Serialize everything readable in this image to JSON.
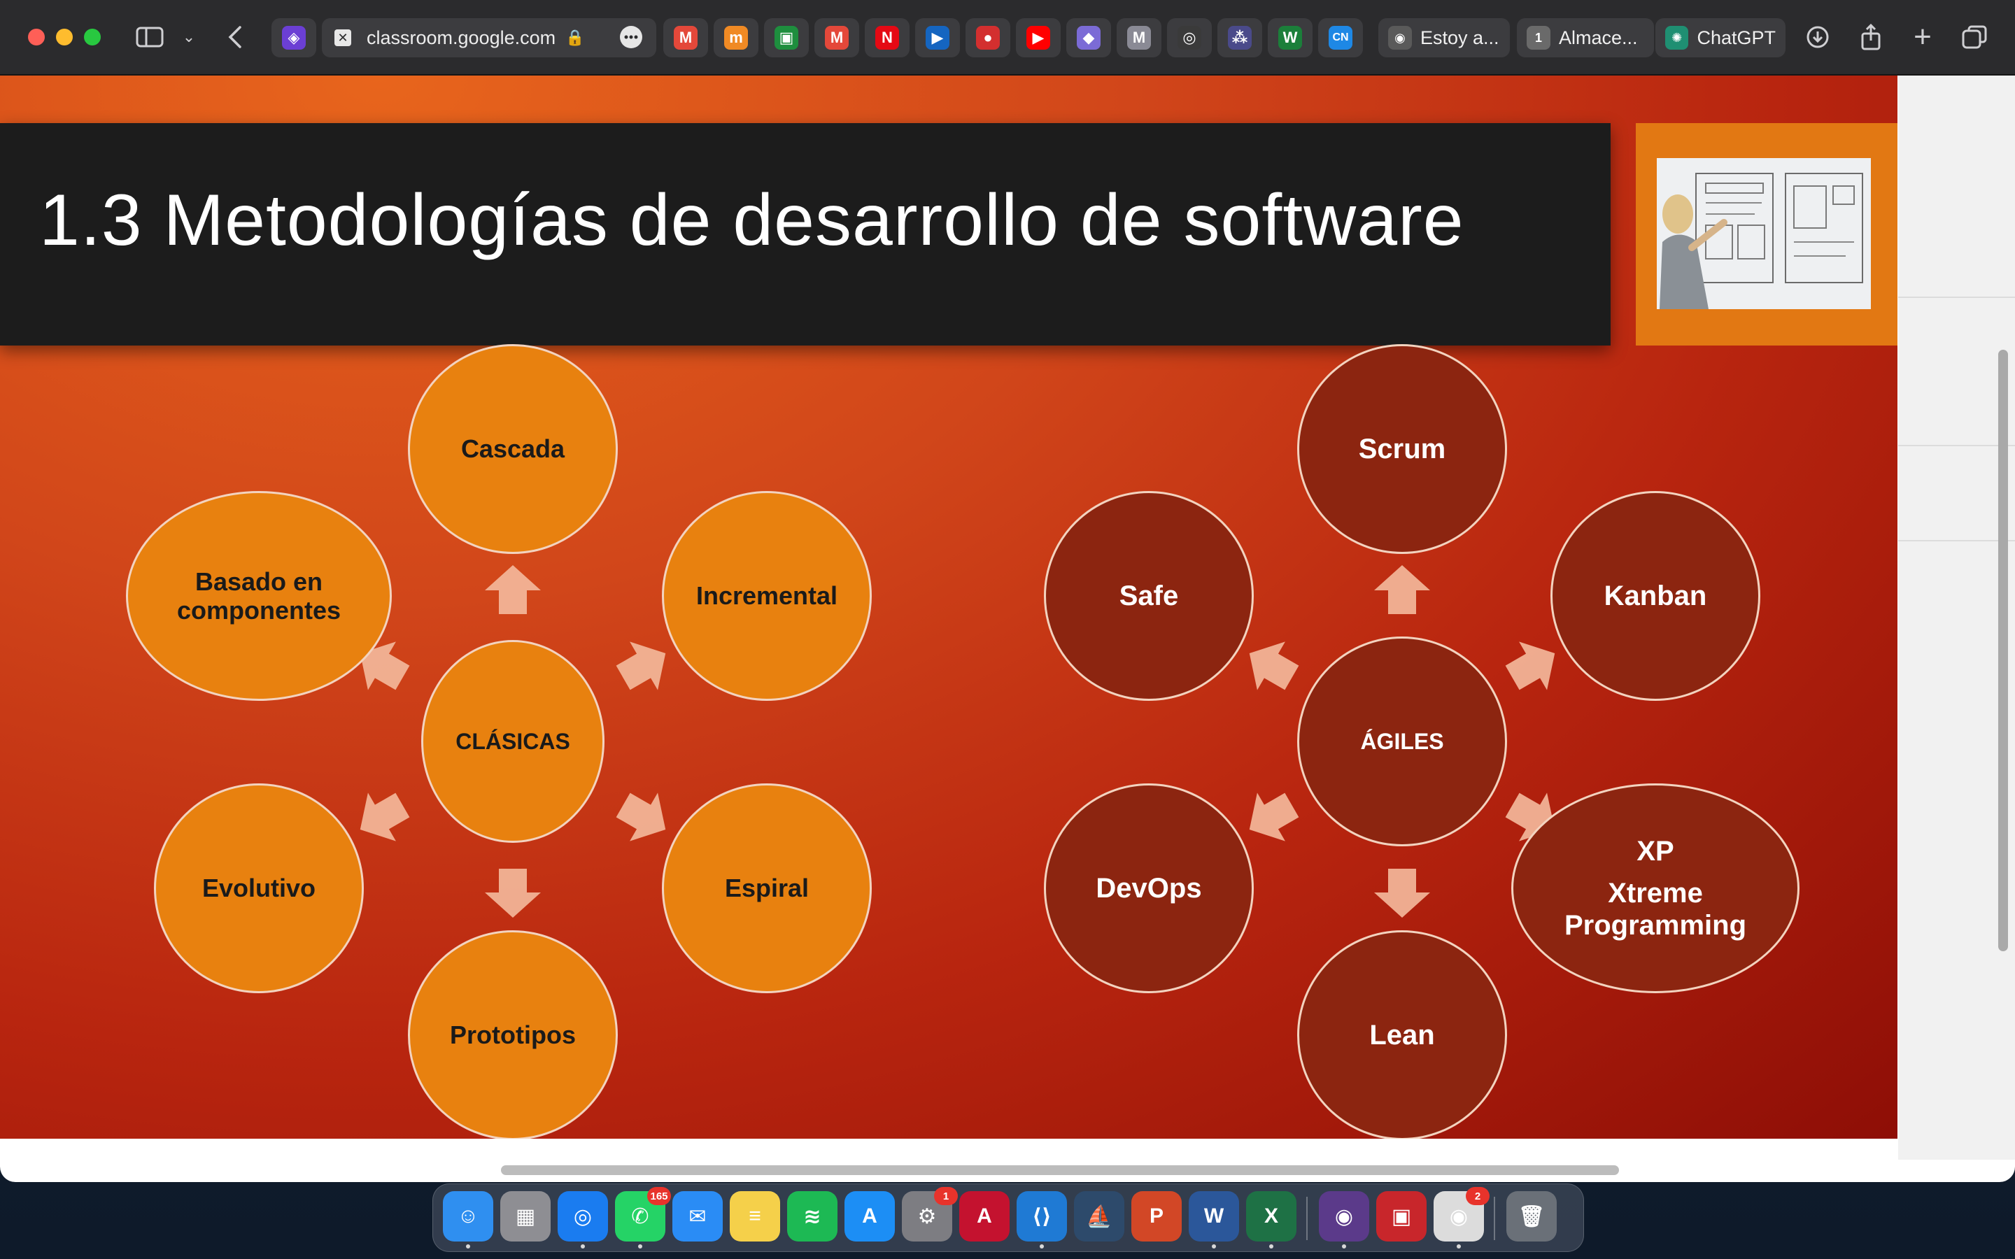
{
  "browser": {
    "address": "classroom.google.com",
    "named_tabs": [
      {
        "label": "Estoy a...",
        "icon": "cisco-icon",
        "color": "#5a5a5a"
      },
      {
        "label": "Almace...",
        "icon": "number-one-icon",
        "color": "#6a6a6a"
      },
      {
        "label": "ChatGPT",
        "icon": "chatgpt-icon",
        "color": "#1f8f72"
      }
    ],
    "pinned_tabs": [
      {
        "name": "gmail-tab-icon",
        "glyph": "M",
        "color": "#e4483a"
      },
      {
        "name": "moodle-tab-icon",
        "glyph": "m",
        "color": "#f08a24"
      },
      {
        "name": "google-classroom-tab-icon",
        "glyph": "▣",
        "color": "#1e8e3e"
      },
      {
        "name": "gmail-tab-icon-2",
        "glyph": "M",
        "color": "#e4483a"
      },
      {
        "name": "netflix-tab-icon",
        "glyph": "N",
        "color": "#e50914"
      },
      {
        "name": "play-tab-icon",
        "glyph": "▶",
        "color": "#1565c0"
      },
      {
        "name": "record-tab-icon",
        "glyph": "●",
        "color": "#d32f2f"
      },
      {
        "name": "youtube-tab-icon",
        "glyph": "▶",
        "color": "#ff0000"
      },
      {
        "name": "prism-tab-icon",
        "glyph": "◆",
        "color": "#7b6bd6"
      },
      {
        "name": "m-tab-icon",
        "glyph": "M",
        "color": "#8a8a95"
      },
      {
        "name": "circle-tab-icon",
        "glyph": "◎",
        "color": "#3a3a3a"
      },
      {
        "name": "network-tab-icon",
        "glyph": "⁂",
        "color": "#4a4a8a"
      },
      {
        "name": "w-tab-icon",
        "glyph": "W",
        "color": "#1b7f3a"
      },
      {
        "name": "cn-tab-icon",
        "glyph": "CN",
        "color": "#1e88e5"
      }
    ]
  },
  "slide": {
    "title": "1.3 Metodologías de desarrollo de software",
    "classic": {
      "center": "CLÁSICAS",
      "nodes": {
        "top": "Cascada",
        "upper_right": "Incremental",
        "lower_right": "Espiral",
        "bottom": "Prototipos",
        "lower_left": "Evolutivo",
        "upper_left": "Basado en componentes"
      },
      "fill_color": "#e8810f"
    },
    "agile": {
      "center": "ÁGILES",
      "nodes": {
        "top": "Scrum",
        "upper_right": "Kanban",
        "lower_right_1": "XP",
        "lower_right_2": "Xtreme Programming",
        "bottom": "Lean",
        "lower_left": "DevOps",
        "upper_left": "Safe"
      },
      "fill_color": "#8c2510"
    }
  },
  "dock": {
    "apps": [
      {
        "name": "finder-icon",
        "glyph": "☺",
        "color": "#2f8ff0"
      },
      {
        "name": "launchpad-icon",
        "glyph": "▦",
        "color": "#8e8e93"
      },
      {
        "name": "safari-icon",
        "glyph": "◎",
        "color": "#1a7cf0"
      },
      {
        "name": "whatsapp-icon",
        "glyph": "✆",
        "color": "#25d366",
        "badge": "165"
      },
      {
        "name": "mail-icon",
        "glyph": "✉",
        "color": "#2a8cf5"
      },
      {
        "name": "notes-icon",
        "glyph": "≡",
        "color": "#f5d04a"
      },
      {
        "name": "spotify-icon",
        "glyph": "≋",
        "color": "#1db954"
      },
      {
        "name": "app-store-icon",
        "glyph": "A",
        "color": "#1c8ef5"
      },
      {
        "name": "system-settings-icon",
        "glyph": "⚙",
        "color": "#7d7d82",
        "badge": "1"
      },
      {
        "name": "autocad-icon",
        "glyph": "A",
        "color": "#c4122f"
      },
      {
        "name": "vscode-icon",
        "glyph": "⟨⟩",
        "color": "#1f7ad4"
      },
      {
        "name": "mysql-workbench-icon",
        "glyph": "⛵",
        "color": "#2d4a6b"
      },
      {
        "name": "powerpoint-icon",
        "glyph": "P",
        "color": "#d24726"
      },
      {
        "name": "word-icon",
        "glyph": "W",
        "color": "#2b579a"
      },
      {
        "name": "excel-icon",
        "glyph": "X",
        "color": "#1e7145"
      },
      {
        "name": "screen-recorder-icon",
        "glyph": "◉",
        "color": "#5b3a8a"
      },
      {
        "name": "photo-booth-icon",
        "glyph": "▣",
        "color": "#c8262b"
      },
      {
        "name": "chrome-icon",
        "glyph": "◉",
        "color": "#dcdcdc",
        "badge": "2"
      },
      {
        "name": "trash-icon",
        "glyph": "🗑",
        "color": "#6a7078"
      }
    ]
  }
}
